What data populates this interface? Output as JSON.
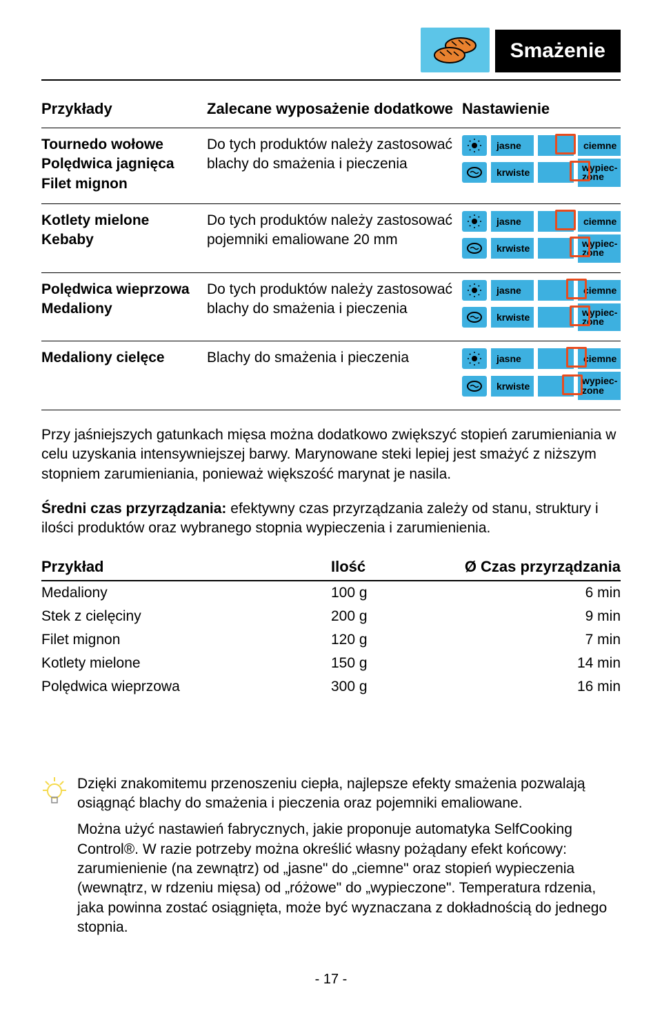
{
  "header": {
    "title": "Smażenie",
    "icon_name": "bread-rolls-icon",
    "icon_bg": "#5cc5e8",
    "icon_fill": "#e8812e"
  },
  "columns": {
    "left": "Przykłady",
    "mid": "Zalecane wyposażenie dodatkowe",
    "right": "Nastawienie"
  },
  "settings_labels": {
    "jasne": "jasne",
    "ciemne": "ciemne",
    "krwiste": "krwiste",
    "wypieczone_l1": "wypiec-",
    "wypieczone_l2": "zone"
  },
  "rows": [
    {
      "items": [
        "Tournedo wołowe",
        "Polędwica jagnięca",
        "Filet mignon"
      ],
      "desc": "Do tych produktów należy zastosować blachy do smażenia i pieczenia",
      "red_top_pos_pct": 48,
      "red_bot_pos_pct": 88
    },
    {
      "items": [
        "Kotlety mielone",
        "Kebaby"
      ],
      "desc": "Do tych produktów należy zastosować pojemniki emaliowane 20 mm",
      "red_top_pos_pct": 48,
      "red_bot_pos_pct": 88
    },
    {
      "items": [
        "Polędwica wieprzowa",
        "Medaliony"
      ],
      "desc": "Do tych produktów należy zastosować blachy do smażenia i pieczenia",
      "red_top_pos_pct": 78,
      "red_bot_pos_pct": 88
    },
    {
      "items": [
        "Medaliony cielęce"
      ],
      "desc": "Blachy do smażenia i pieczenia",
      "red_top_pos_pct": 78,
      "red_bot_pos_pct": 68
    }
  ],
  "para1": "Przy jaśniejszych gatunkach mięsa można dodatkowo zwiększyć stopień zarumieniania w celu uzyskania intensywniejszej barwy. Marynowane steki lepiej jest smażyć z niższym stopniem zarumieniania, ponieważ większość marynat je nasila.",
  "para2_bold": "Średni czas przyrządzania:",
  "para2_rest": " efektywny czas przyrządzania zależy od stanu, struktury i ilości produktów oraz wybranego stopnia wypieczenia i zarumienienia.",
  "time_table": {
    "headers": [
      "Przykład",
      "Ilość",
      "Ø Czas przyrządzania"
    ],
    "rows": [
      [
        "Medaliony",
        "100 g",
        "6 min"
      ],
      [
        "Stek z cielęciny",
        "200 g",
        "9 min"
      ],
      [
        "Filet mignon",
        "120 g",
        "7 min"
      ],
      [
        "Kotlety mielone",
        "150 g",
        "14 min"
      ],
      [
        "Polędwica wieprzowa",
        "300 g",
        "16 min"
      ]
    ]
  },
  "tip": {
    "p1": "Dzięki znakomitemu przenoszeniu ciepła, najlepsze efekty smażenia pozwalają osiągnąć blachy do smażenia i pieczenia oraz pojemniki emaliowane.",
    "p2": "Można użyć nastawień fabrycznych, jakie proponuje automatyka SelfCooking Control®. W razie potrzeby można określić własny pożądany efekt końcowy: zarumienienie (na zewnątrz) od „jasne\" do „ciemne\" oraz stopień wypieczenia (wewnątrz, w rdzeniu mięsa) od „różowe\" do „wypieczone\". Temperatura rdzenia, jaka powinna zostać osiągnięta, może być wyznaczana z dokładnością do jednego stopnia."
  },
  "page_number": "- 17 -",
  "colors": {
    "setting_bg": "#3db0e0",
    "red_box": "#e84c1e",
    "bulb": "#f5d94a"
  }
}
